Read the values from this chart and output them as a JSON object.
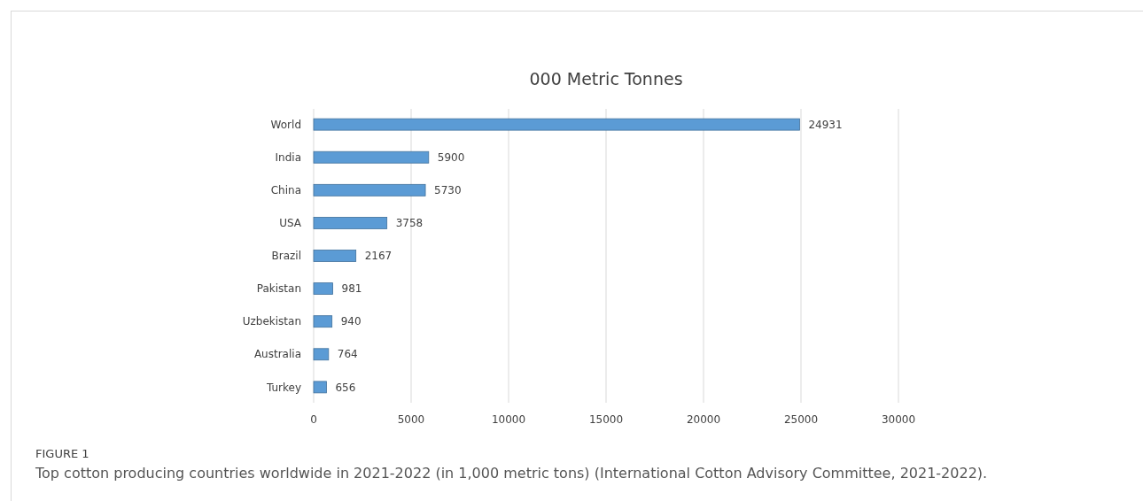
{
  "chart_data": {
    "type": "bar",
    "orientation": "horizontal",
    "title": "000 Metric Tonnes",
    "categories": [
      "World",
      "India",
      "China",
      "USA",
      "Brazil",
      "Pakistan",
      "Uzbekistan",
      "Australia",
      "Turkey"
    ],
    "values": [
      24931,
      5900,
      5730,
      3758,
      2167,
      981,
      940,
      764,
      656
    ],
    "color": "#5b9bd5",
    "xlim": [
      0,
      30000
    ],
    "xticks": [
      0,
      5000,
      10000,
      15000,
      20000,
      25000,
      30000
    ],
    "grid": "x",
    "data_labels": true,
    "annotations": [
      "FIGURE 1",
      "Top cotton producing countries worldwide in 2021-2022 (in 1,000 metric tons) (International Cotton Advisory Committee, 2021-2022)."
    ]
  }
}
